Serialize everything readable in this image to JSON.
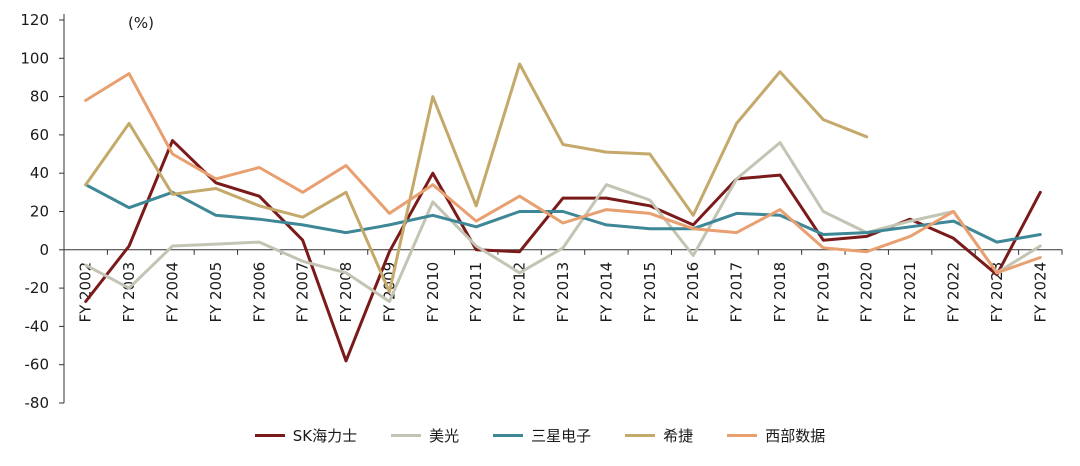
{
  "chart_data": {
    "type": "line",
    "unit_label": "(%)",
    "x": [
      "FY 2002",
      "FY 2003",
      "FY 2004",
      "FY 2005",
      "FY 2006",
      "FY 2007",
      "FY 2008",
      "FY 2009",
      "FY 2010",
      "FY 2011",
      "FY 2012",
      "FY 2013",
      "FY 2014",
      "FY 2015",
      "FY 2016",
      "FY 2017",
      "FY 2018",
      "FY 2019",
      "FY 2020",
      "FY 2021",
      "FY 2022",
      "FY 2023",
      "FY 2024"
    ],
    "ylim": [
      -80,
      120
    ],
    "yticks": [
      -80,
      -60,
      -40,
      -20,
      0,
      20,
      40,
      60,
      80,
      100,
      120
    ],
    "grid": false,
    "legend_position": "bottom",
    "series": [
      {
        "name": "SK海力士",
        "color": "#7a1a1a",
        "values": [
          -27,
          2,
          57,
          35,
          28,
          5,
          -58,
          -1,
          40,
          0,
          -1,
          27,
          27,
          23,
          13,
          37,
          39,
          5,
          7,
          16,
          6,
          -13,
          30
        ]
      },
      {
        "name": "美光",
        "color": "#c4c4b4",
        "values": [
          -8,
          -20,
          2,
          3,
          4,
          -6,
          -12,
          -27,
          25,
          2,
          -12,
          1,
          34,
          26,
          -3,
          37,
          56,
          20,
          9,
          15,
          20,
          -12,
          2
        ]
      },
      {
        "name": "三星电子",
        "color": "#3e8796",
        "values": [
          34,
          22,
          30,
          18,
          16,
          13,
          9,
          13,
          18,
          12,
          20,
          20,
          13,
          11,
          11,
          19,
          18,
          8,
          9,
          12,
          15,
          4,
          8
        ]
      },
      {
        "name": "希捷",
        "color": "#c4a96b",
        "values": [
          34,
          66,
          29,
          32,
          23,
          17,
          30,
          -22,
          80,
          23,
          97,
          55,
          51,
          50,
          18,
          66,
          93,
          68,
          59,
          null,
          null,
          null,
          null
        ]
      },
      {
        "name": "西部数据",
        "color": "#e8a071",
        "values": [
          78,
          92,
          50,
          37,
          43,
          30,
          44,
          19,
          34,
          15,
          28,
          14,
          21,
          19,
          11,
          9,
          21,
          1,
          -1,
          7,
          20,
          -12,
          -4
        ]
      }
    ]
  }
}
